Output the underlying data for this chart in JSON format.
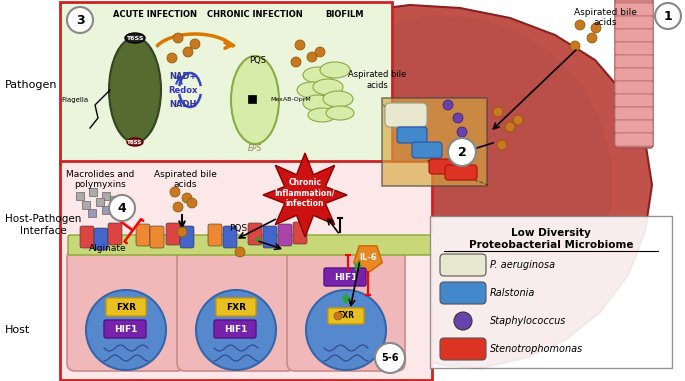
{
  "background_color": "#ffffff",
  "lung_color": "#c0524a",
  "pathogen_box_bg": "#eaf5dc",
  "pathogen_box_border": "#cc2222",
  "host_box_bg": "#fce8e8",
  "host_box_border": "#cc2222",
  "legend_items": [
    {
      "label": "P. aeruginosa",
      "color": "#e8e8d0",
      "shape": "capsule"
    },
    {
      "label": "Ralstonia",
      "color": "#4488cc",
      "shape": "capsule"
    },
    {
      "label": "Staphylococcus",
      "color": "#6644aa",
      "shape": "circle"
    },
    {
      "label": "Stenotrophomonas",
      "color": "#dd3322",
      "shape": "capsule"
    }
  ],
  "legend_title_line1": "Low Diversity",
  "legend_title_line2": "Proteobacterial Microbiome",
  "bile_color": "#c87820",
  "fxr_color": "#e8c020",
  "hif1_color": "#7722aa",
  "cell_color": "#5588cc",
  "cell_border": "#3366aa",
  "section_acute": "ACUTE INFECTION",
  "section_chronic": "CHRONIC INFECTION",
  "section_biofilm": "BIOFILM",
  "label_pathogen": "Pathogen",
  "label_hpi": "Host-Pathogen\nInterface",
  "label_host": "Host",
  "ann_aspirated_top": "Aspirated bile\nacids",
  "ann_macrolides": "Macrolides and\npolymyxins",
  "ann_aspirated_mid": "Aspirated bile\nacids",
  "ann_alginate": "Alginate",
  "ann_pqs_mid": "PQS",
  "ann_chronic": "Chronic\nInflammation/\ninfection",
  "ann_il6": "IL-6",
  "ann_nad": "NAD+",
  "ann_redox": "Redox",
  "ann_nadh": "NADH",
  "ann_pqs_top": "PQS",
  "ann_eps": "EPS",
  "ann_mexab": "MexAB-OprM",
  "ann_t6ss": "T6SS",
  "ann_flagella": "Flagella",
  "ann_aspirated_box": "Aspirated bile\nacids"
}
